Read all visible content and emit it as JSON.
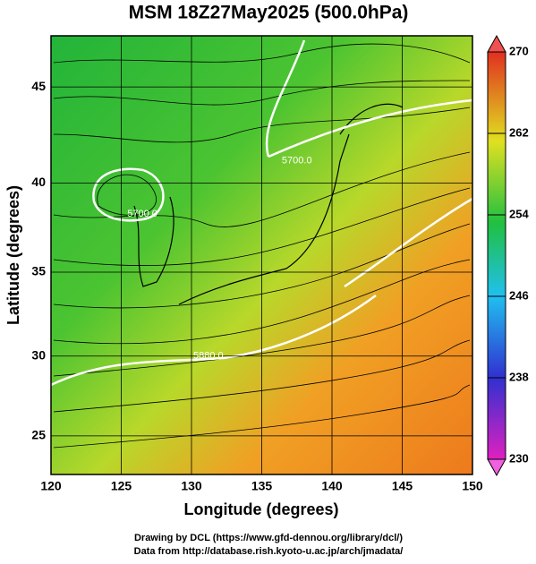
{
  "title": "MSM 18Z27May2025 (500.0hPa)",
  "map": {
    "xlabel": "Longitude (degrees)",
    "ylabel": "Latitude  (degrees)",
    "xlim": [
      120,
      150
    ],
    "ylim": [
      22.5,
      47.5
    ],
    "xticks": [
      120,
      125,
      130,
      135,
      140,
      145,
      150
    ],
    "yticks": [
      25,
      30,
      35,
      40,
      45
    ],
    "contour_labels": [
      {
        "text": "5700.0",
        "lon": 126.5,
        "lat": 38.3
      },
      {
        "text": "5700.0",
        "lon": 137.5,
        "lat": 41.2
      },
      {
        "text": "5880.0",
        "lon": 131.2,
        "lat": 30.0
      }
    ]
  },
  "colorbar": {
    "lim": [
      230,
      270
    ],
    "ticks": [
      230,
      238,
      246,
      254,
      262,
      270
    ]
  },
  "footer": [
    "Drawing by DCL (https://www.gfd-dennou.org/library/dcl/)",
    "Data from http://database.rish.kyoto-u.ac.jp/arch/jmadata/"
  ]
}
